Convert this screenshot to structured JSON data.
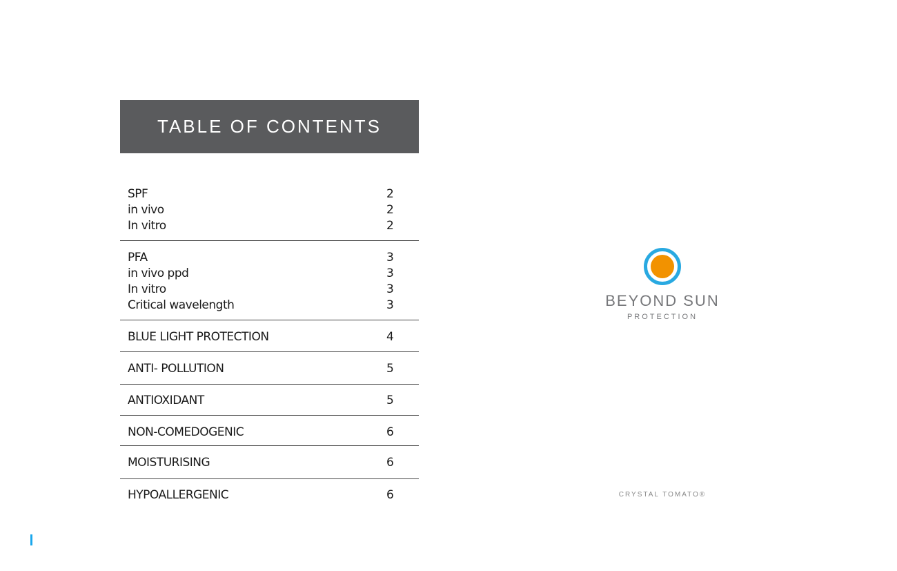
{
  "header": {
    "title": "TABLE OF CONTENTS"
  },
  "toc": [
    {
      "lines": [
        {
          "label": "SPF",
          "page": "2"
        },
        {
          "label": "in vivo",
          "page": "2"
        },
        {
          "label": "In vitro",
          "page": "2"
        }
      ]
    },
    {
      "lines": [
        {
          "label": "PFA",
          "page": "3"
        },
        {
          "label": "in vivo ppd",
          "page": "3"
        },
        {
          "label": "In vitro",
          "page": "3"
        },
        {
          "label": "Critical wavelength",
          "page": "3"
        }
      ]
    },
    {
      "lines": [
        {
          "label": "BLUE LIGHT PROTECTION",
          "page": "4"
        }
      ]
    },
    {
      "lines": [
        {
          "label": "ANTI- POLLUTION",
          "page": "5"
        }
      ]
    },
    {
      "lines": [
        {
          "label": "ANTIOXIDANT",
          "page": "5"
        }
      ]
    },
    {
      "lines": [
        {
          "label": "NON-COMEDOGENIC",
          "page": "6"
        }
      ]
    },
    {
      "lines": [
        {
          "label": "MOISTURISING",
          "page": "6"
        }
      ]
    },
    {
      "lines": [
        {
          "label": "HYPOALLERGENIC",
          "page": "6"
        }
      ]
    }
  ],
  "logo": {
    "brand": "BEYOND SUN",
    "sub": "PROTECTION",
    "ring_color": "#29a9e1",
    "sun_color": "#f29200"
  },
  "footer": {
    "text": "CRYSTAL TOMATO®"
  },
  "colors": {
    "header_bg": "#5a5b5d",
    "page_marker": "#1aa7ec"
  }
}
